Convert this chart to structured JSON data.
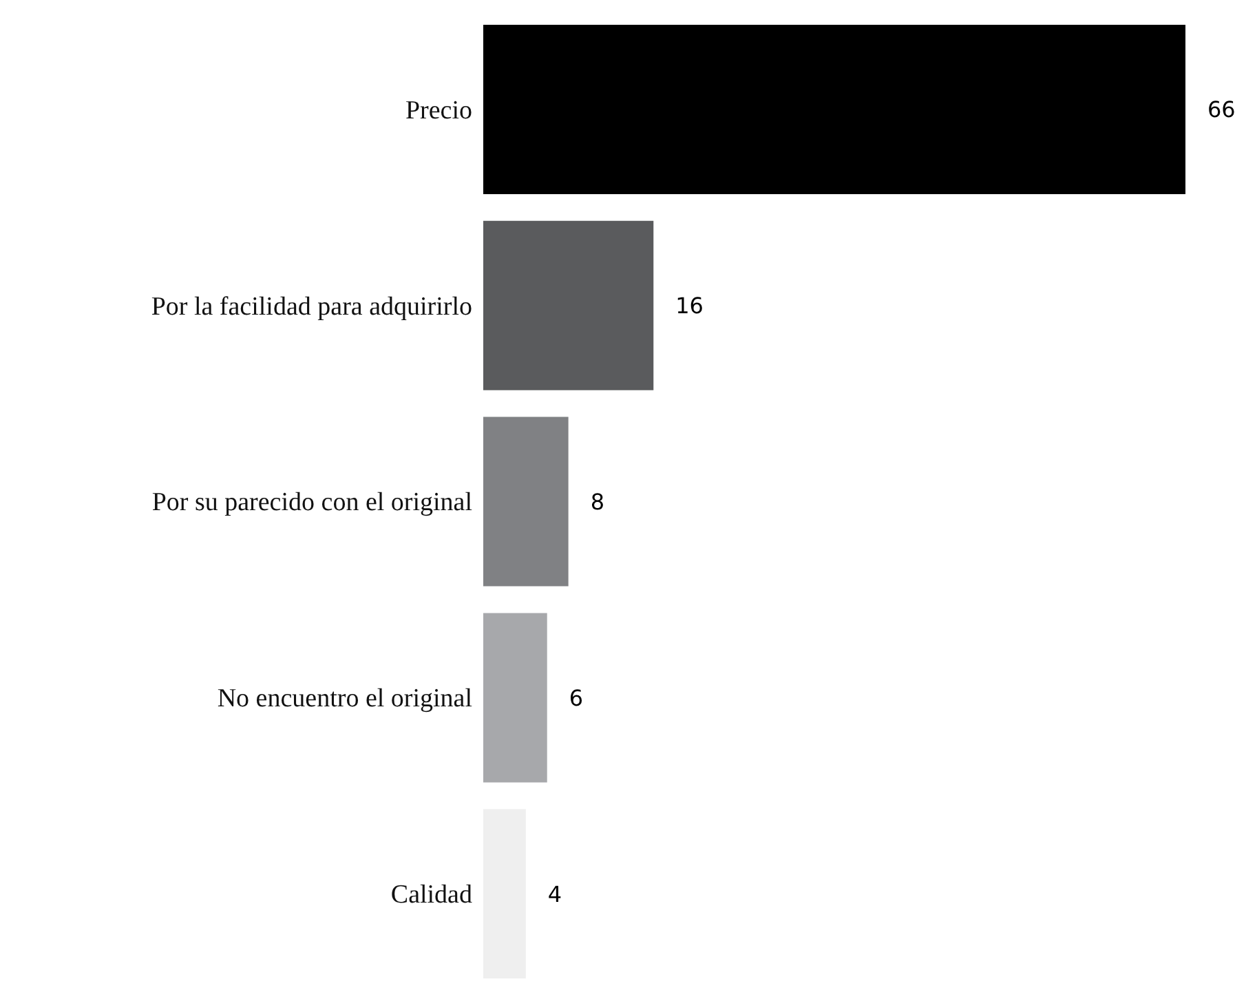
{
  "chart_data": {
    "type": "bar",
    "orientation": "horizontal",
    "categories": [
      "Precio",
      "Por la facilidad para adquirirlo",
      "Por su parecido con el original",
      "No encuentro el original",
      "Calidad"
    ],
    "values": [
      66,
      16,
      8,
      6,
      4
    ],
    "colors": [
      "#000000",
      "#5a5b5d",
      "#808184",
      "#a7a8ab",
      "#efefef"
    ],
    "data_labels": true
  }
}
